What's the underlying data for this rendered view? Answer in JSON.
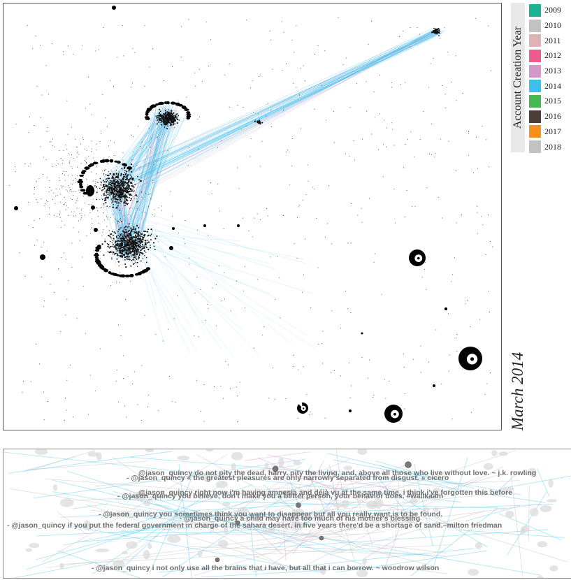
{
  "legend": {
    "title": "Account Creation Year",
    "items": [
      {
        "year": "2009",
        "color": "#1ab394"
      },
      {
        "year": "2010",
        "color": "#c2c2c2"
      },
      {
        "year": "2011",
        "color": "#e0b3b3"
      },
      {
        "year": "2012",
        "color": "#ef5b8c"
      },
      {
        "year": "2013",
        "color": "#d597c9"
      },
      {
        "year": "2014",
        "color": "#3cc0ee"
      },
      {
        "year": "2015",
        "color": "#46b850"
      },
      {
        "year": "2016",
        "color": "#4a3e38"
      },
      {
        "year": "2017",
        "color": "#f7911e"
      },
      {
        "year": "2018",
        "color": "#c2c2c2"
      }
    ]
  },
  "date_label": "March 2014",
  "tweets": [
    {
      "text": "@jason_quincy do not pity the dead, harry. pity the living, and, above all those who live without love.  ~ j.k. rowling"
    },
    {
      "text": "- @jason_quincy « the greatest pleasures are only narrowly separated from disgust. » cicero"
    },
    {
      "text": "@jason_quincy right now i'm having amnesia and déjà vu at the same time. i think i've forgotten this before"
    },
    {
      "text": "- @jason_quincy you believe, don't make you a better person, your behavior does. #wallkaam"
    },
    {
      "text": "- @jason_quincy you sometimes think you want to disappear but all you really want is to be found."
    },
    {
      "text": "- @jason_quincy a child may have too much of his mother's blessing"
    },
    {
      "text": "- @jason_quincy if you put the federal government in charge of the sahara desert, in five years there'd be a shortage of sand.–milton friedman"
    },
    {
      "text": "- @jason_quincy i not only use all the brains that i have, but all that i can borrow.  ~ woodrow wilson"
    }
  ]
}
